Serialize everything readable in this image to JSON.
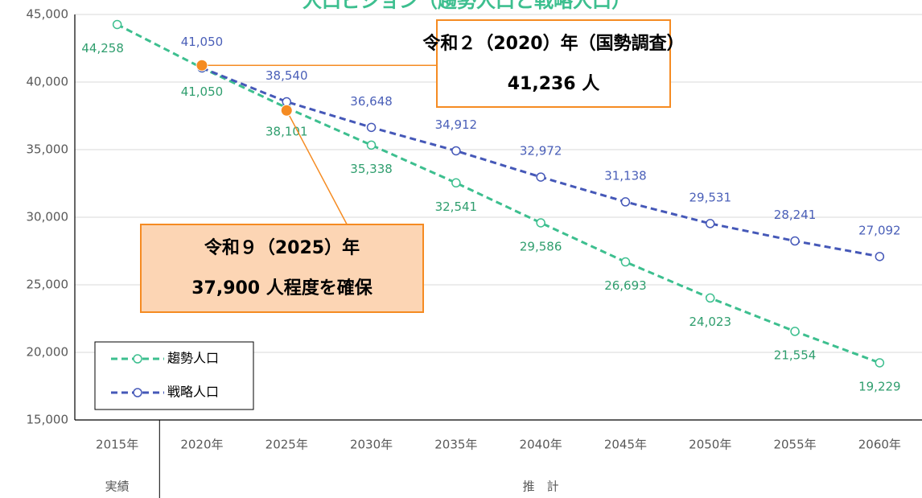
{
  "chart_data": {
    "type": "line",
    "title": "人口ビジョン（趨勢人口と戦略人口）",
    "categories": [
      "2015年",
      "2020年",
      "2025年",
      "2030年",
      "2035年",
      "2040年",
      "2045年",
      "2050年",
      "2055年",
      "2060年"
    ],
    "x_groups": [
      "実績",
      "推　計"
    ],
    "series": [
      {
        "name": "趨勢人口",
        "color": "#3dbf8f",
        "label_color": "#2f9e6e",
        "values": [
          44258,
          41050,
          38101,
          35338,
          32541,
          29586,
          26693,
          24023,
          21554,
          19229
        ],
        "value_labels": [
          "44,258",
          "41,050",
          "38,101",
          "35,338",
          "32,541",
          "29,586",
          "26,693",
          "24,023",
          "21,554",
          "19,229"
        ]
      },
      {
        "name": "戦略人口",
        "color": "#4558b8",
        "label_color": "#4a5fb8",
        "values": [
          null,
          41050,
          38540,
          36648,
          34912,
          32972,
          31138,
          29531,
          28241,
          27092
        ],
        "value_labels": [
          null,
          "41,050",
          "38,540",
          "36,648",
          "34,912",
          "32,972",
          "31,138",
          "29,531",
          "28,241",
          "27,092"
        ]
      }
    ],
    "ylim": [
      15000,
      45000
    ],
    "yticks": [
      {
        "value": 15000,
        "label": "15,000"
      },
      {
        "value": 20000,
        "label": "20,000"
      },
      {
        "value": 25000,
        "label": "25,000"
      },
      {
        "value": 30000,
        "label": "30,000"
      },
      {
        "value": 35000,
        "label": "35,000"
      },
      {
        "value": 40000,
        "label": "40,000"
      },
      {
        "value": 45000,
        "label": "45,000"
      }
    ],
    "grid": true,
    "legend": "lower left",
    "annotations": [
      {
        "lines": [
          "令和２（2020）年（国勢調査）",
          "41,236 人"
        ],
        "category": "2020年",
        "value": 41236,
        "color": "#f58b22",
        "box_fill": "#ffffff"
      },
      {
        "lines": [
          "令和９（2025）年",
          "37,900 人程度を確保"
        ],
        "category": "2025年",
        "value": 37900,
        "color": "#f58b22",
        "box_fill": "#fcd5b4"
      }
    ]
  }
}
